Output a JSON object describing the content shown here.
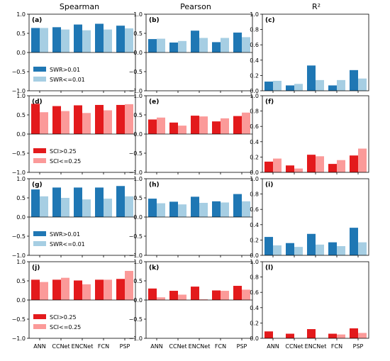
{
  "column_titles": [
    "Spearman",
    "Pearson",
    "R²"
  ],
  "categories": [
    "ANN",
    "CCNet",
    "ENCNet",
    "FCN",
    "PSP"
  ],
  "colors": {
    "blue_dark": "#1f77b4",
    "blue_light": "#a6cee3",
    "red_dark": "#e31a1c",
    "red_light": "#fb9a99"
  },
  "chart_data": [
    {
      "id": "a",
      "label": "(a)",
      "type": "bar",
      "ylim": [
        -1,
        1
      ],
      "yticks": [
        -1.0,
        -0.5,
        0.0,
        0.5,
        1.0
      ],
      "tick_labels": [
        "−1.0",
        "−0.5",
        "0.0",
        "0.5",
        "1.0"
      ],
      "categories": [
        "ANN",
        "CCNet",
        "ENCNet",
        "FCN",
        "PSP"
      ],
      "palette": "blue",
      "show_xticklabels": false,
      "legend": {
        "placement": "lower-left",
        "entries": [
          "SWR>0.01",
          "SWR<=0.01"
        ]
      },
      "series": [
        {
          "name": "SWR>0.01",
          "values": [
            0.64,
            0.66,
            0.73,
            0.75,
            0.7
          ]
        },
        {
          "name": "SWR<=0.01",
          "values": [
            0.64,
            0.6,
            0.58,
            0.6,
            0.63
          ]
        }
      ]
    },
    {
      "id": "b",
      "label": "(b)",
      "type": "bar",
      "ylim": [
        -1,
        1
      ],
      "yticks": [
        -1.0,
        -0.5,
        0.0,
        0.5,
        1.0
      ],
      "tick_labels": [
        "−1.0",
        "−0.5",
        "0.0",
        "0.5",
        "1.0"
      ],
      "categories": [
        "ANN",
        "CCNet",
        "ENCNet",
        "FCN",
        "PSP"
      ],
      "palette": "blue",
      "show_xticklabels": false,
      "series": [
        {
          "name": "SWR>0.01",
          "values": [
            0.35,
            0.26,
            0.57,
            0.27,
            0.52
          ]
        },
        {
          "name": "SWR<=0.01",
          "values": [
            0.36,
            0.3,
            0.38,
            0.38,
            0.4
          ]
        }
      ]
    },
    {
      "id": "c",
      "label": "(c)",
      "type": "bar",
      "ylim": [
        0,
        1
      ],
      "yticks": [
        0.0,
        0.2,
        0.4,
        0.6,
        0.8,
        1.0
      ],
      "tick_labels": [
        "0.0",
        "0.2",
        "0.4",
        "0.6",
        "0.8",
        "1.0"
      ],
      "categories": [
        "ANN",
        "CCNet",
        "ENCNet",
        "FCN",
        "PSP"
      ],
      "palette": "blue",
      "show_xticklabels": false,
      "series": [
        {
          "name": "SWR>0.01",
          "values": [
            0.12,
            0.07,
            0.33,
            0.07,
            0.27
          ]
        },
        {
          "name": "SWR<=0.01",
          "values": [
            0.13,
            0.09,
            0.14,
            0.14,
            0.16
          ]
        }
      ]
    },
    {
      "id": "d",
      "label": "(d)",
      "type": "bar",
      "ylim": [
        -1,
        1
      ],
      "yticks": [
        -1.0,
        -0.5,
        0.0,
        0.5,
        1.0
      ],
      "tick_labels": [
        "−1.0",
        "−0.5",
        "0.0",
        "0.5",
        "1.0"
      ],
      "categories": [
        "ANN",
        "CCNet",
        "ENCNet",
        "FCN",
        "PSP"
      ],
      "palette": "red",
      "show_xticklabels": false,
      "legend": {
        "placement": "lower-left",
        "entries": [
          "SCI>0.25",
          "SCI<=0.25"
        ]
      },
      "series": [
        {
          "name": "SCI>0.25",
          "values": [
            0.79,
            0.73,
            0.75,
            0.76,
            0.76
          ]
        },
        {
          "name": "SCI<=0.25",
          "values": [
            0.57,
            0.6,
            0.55,
            0.62,
            0.78
          ]
        }
      ]
    },
    {
      "id": "e",
      "label": "(e)",
      "type": "bar",
      "ylim": [
        -1,
        1
      ],
      "yticks": [
        -1.0,
        -0.5,
        0.0,
        0.5,
        1.0
      ],
      "tick_labels": [
        "−1.0",
        "−0.5",
        "0.0",
        "0.5",
        "1.0"
      ],
      "categories": [
        "ANN",
        "CCNet",
        "ENCNet",
        "FCN",
        "PSP"
      ],
      "palette": "red",
      "show_xticklabels": false,
      "series": [
        {
          "name": "SCI>0.25",
          "values": [
            0.38,
            0.3,
            0.48,
            0.33,
            0.47
          ]
        },
        {
          "name": "SCI<=0.25",
          "values": [
            0.43,
            0.22,
            0.46,
            0.41,
            0.56
          ]
        }
      ]
    },
    {
      "id": "f",
      "label": "(f)",
      "type": "bar",
      "ylim": [
        0,
        1
      ],
      "yticks": [
        0.0,
        0.2,
        0.4,
        0.6,
        0.8,
        1.0
      ],
      "tick_labels": [
        "0.0",
        "0.2",
        "0.4",
        "0.6",
        "0.8",
        "1.0"
      ],
      "categories": [
        "ANN",
        "CCNet",
        "ENCNet",
        "FCN",
        "PSP"
      ],
      "palette": "red",
      "show_xticklabels": false,
      "series": [
        {
          "name": "SCI>0.25",
          "values": [
            0.14,
            0.09,
            0.23,
            0.11,
            0.22
          ]
        },
        {
          "name": "SCI<=0.25",
          "values": [
            0.18,
            0.05,
            0.21,
            0.16,
            0.31
          ]
        }
      ]
    },
    {
      "id": "g",
      "label": "(g)",
      "type": "bar",
      "ylim": [
        -1,
        1
      ],
      "yticks": [
        -1.0,
        -0.5,
        0.0,
        0.5,
        1.0
      ],
      "tick_labels": [
        "−1.0",
        "−0.5",
        "0.0",
        "0.5",
        "1.0"
      ],
      "categories": [
        "ANN",
        "CCNet",
        "ENCNet",
        "FCN",
        "PSP"
      ],
      "palette": "blue",
      "show_xticklabels": false,
      "legend": {
        "placement": "lower-left",
        "entries": [
          "SWR>0.01",
          "SWR<=0.01"
        ]
      },
      "series": [
        {
          "name": "SWR>0.01",
          "values": [
            0.72,
            0.77,
            0.77,
            0.77,
            0.81
          ]
        },
        {
          "name": "SWR<=0.01",
          "values": [
            0.54,
            0.5,
            0.46,
            0.48,
            0.54
          ]
        }
      ]
    },
    {
      "id": "h",
      "label": "(h)",
      "type": "bar",
      "ylim": [
        -1,
        1
      ],
      "yticks": [
        -1.0,
        -0.5,
        0.0,
        0.5,
        1.0
      ],
      "tick_labels": [
        "−1.0",
        "−0.5",
        "0.0",
        "0.5",
        "1.0"
      ],
      "categories": [
        "ANN",
        "CCNet",
        "ENCNet",
        "FCN",
        "PSP"
      ],
      "palette": "blue",
      "show_xticklabels": false,
      "series": [
        {
          "name": "SWR>0.01",
          "values": [
            0.48,
            0.4,
            0.53,
            0.41,
            0.6
          ]
        },
        {
          "name": "SWR<=0.01",
          "values": [
            0.36,
            0.33,
            0.37,
            0.38,
            0.41
          ]
        }
      ]
    },
    {
      "id": "i",
      "label": "(i)",
      "type": "bar",
      "ylim": [
        0,
        1
      ],
      "yticks": [
        0.0,
        0.2,
        0.4,
        0.6,
        0.8,
        1.0
      ],
      "tick_labels": [
        "0.0",
        "0.2",
        "0.4",
        "0.6",
        "0.8",
        "1.0"
      ],
      "categories": [
        "ANN",
        "CCNet",
        "ENCNet",
        "FCN",
        "PSP"
      ],
      "palette": "blue",
      "show_xticklabels": false,
      "series": [
        {
          "name": "SWR>0.01",
          "values": [
            0.24,
            0.16,
            0.28,
            0.17,
            0.36
          ]
        },
        {
          "name": "SWR<=0.01",
          "values": [
            0.13,
            0.11,
            0.14,
            0.12,
            0.17
          ]
        }
      ]
    },
    {
      "id": "j",
      "label": "(j)",
      "type": "bar",
      "ylim": [
        -1,
        1
      ],
      "yticks": [
        -1.0,
        -0.5,
        0.0,
        0.5,
        1.0
      ],
      "tick_labels": [
        "−1.0",
        "−0.5",
        "0.0",
        "0.5",
        "1.0"
      ],
      "categories": [
        "ANN",
        "CCNet",
        "ENCNet",
        "FCN",
        "PSP"
      ],
      "palette": "red",
      "show_xticklabels": true,
      "legend": {
        "placement": "lower-left",
        "entries": [
          "SCI>0.25",
          "SCI<=0.25"
        ]
      },
      "series": [
        {
          "name": "SCI>0.25",
          "values": [
            0.53,
            0.53,
            0.51,
            0.53,
            0.55
          ]
        },
        {
          "name": "SCI<=0.25",
          "values": [
            0.47,
            0.58,
            0.41,
            0.53,
            0.76
          ]
        }
      ]
    },
    {
      "id": "k",
      "label": "(k)",
      "type": "bar",
      "ylim": [
        -1,
        1
      ],
      "yticks": [
        -1.0,
        -0.5,
        0.0,
        0.5,
        1.0
      ],
      "tick_labels": [
        "−1.0",
        "−0.5",
        "0.0",
        "0.5",
        "1.0"
      ],
      "categories": [
        "ANN",
        "CCNet",
        "ENCNet",
        "FCN",
        "PSP"
      ],
      "palette": "red",
      "show_xticklabels": true,
      "series": [
        {
          "name": "SCI>0.25",
          "values": [
            0.3,
            0.24,
            0.35,
            0.25,
            0.37
          ]
        },
        {
          "name": "SCI<=0.25",
          "values": [
            0.07,
            0.14,
            0.02,
            0.24,
            0.27
          ]
        }
      ]
    },
    {
      "id": "l",
      "label": "(l)",
      "type": "bar",
      "ylim": [
        0,
        1
      ],
      "yticks": [
        0.0,
        0.2,
        0.4,
        0.6,
        0.8,
        1.0
      ],
      "tick_labels": [
        "0.0",
        "0.2",
        "0.4",
        "0.6",
        "0.8",
        "1.0"
      ],
      "categories": [
        "ANN",
        "CCNet",
        "ENCNet",
        "FCN",
        "PSP"
      ],
      "palette": "red",
      "show_xticklabels": true,
      "series": [
        {
          "name": "SCI>0.25",
          "values": [
            0.09,
            0.06,
            0.12,
            0.06,
            0.13
          ]
        },
        {
          "name": "SCI<=0.25",
          "values": [
            0.0,
            0.0,
            0.0,
            0.05,
            0.07
          ]
        }
      ]
    }
  ]
}
